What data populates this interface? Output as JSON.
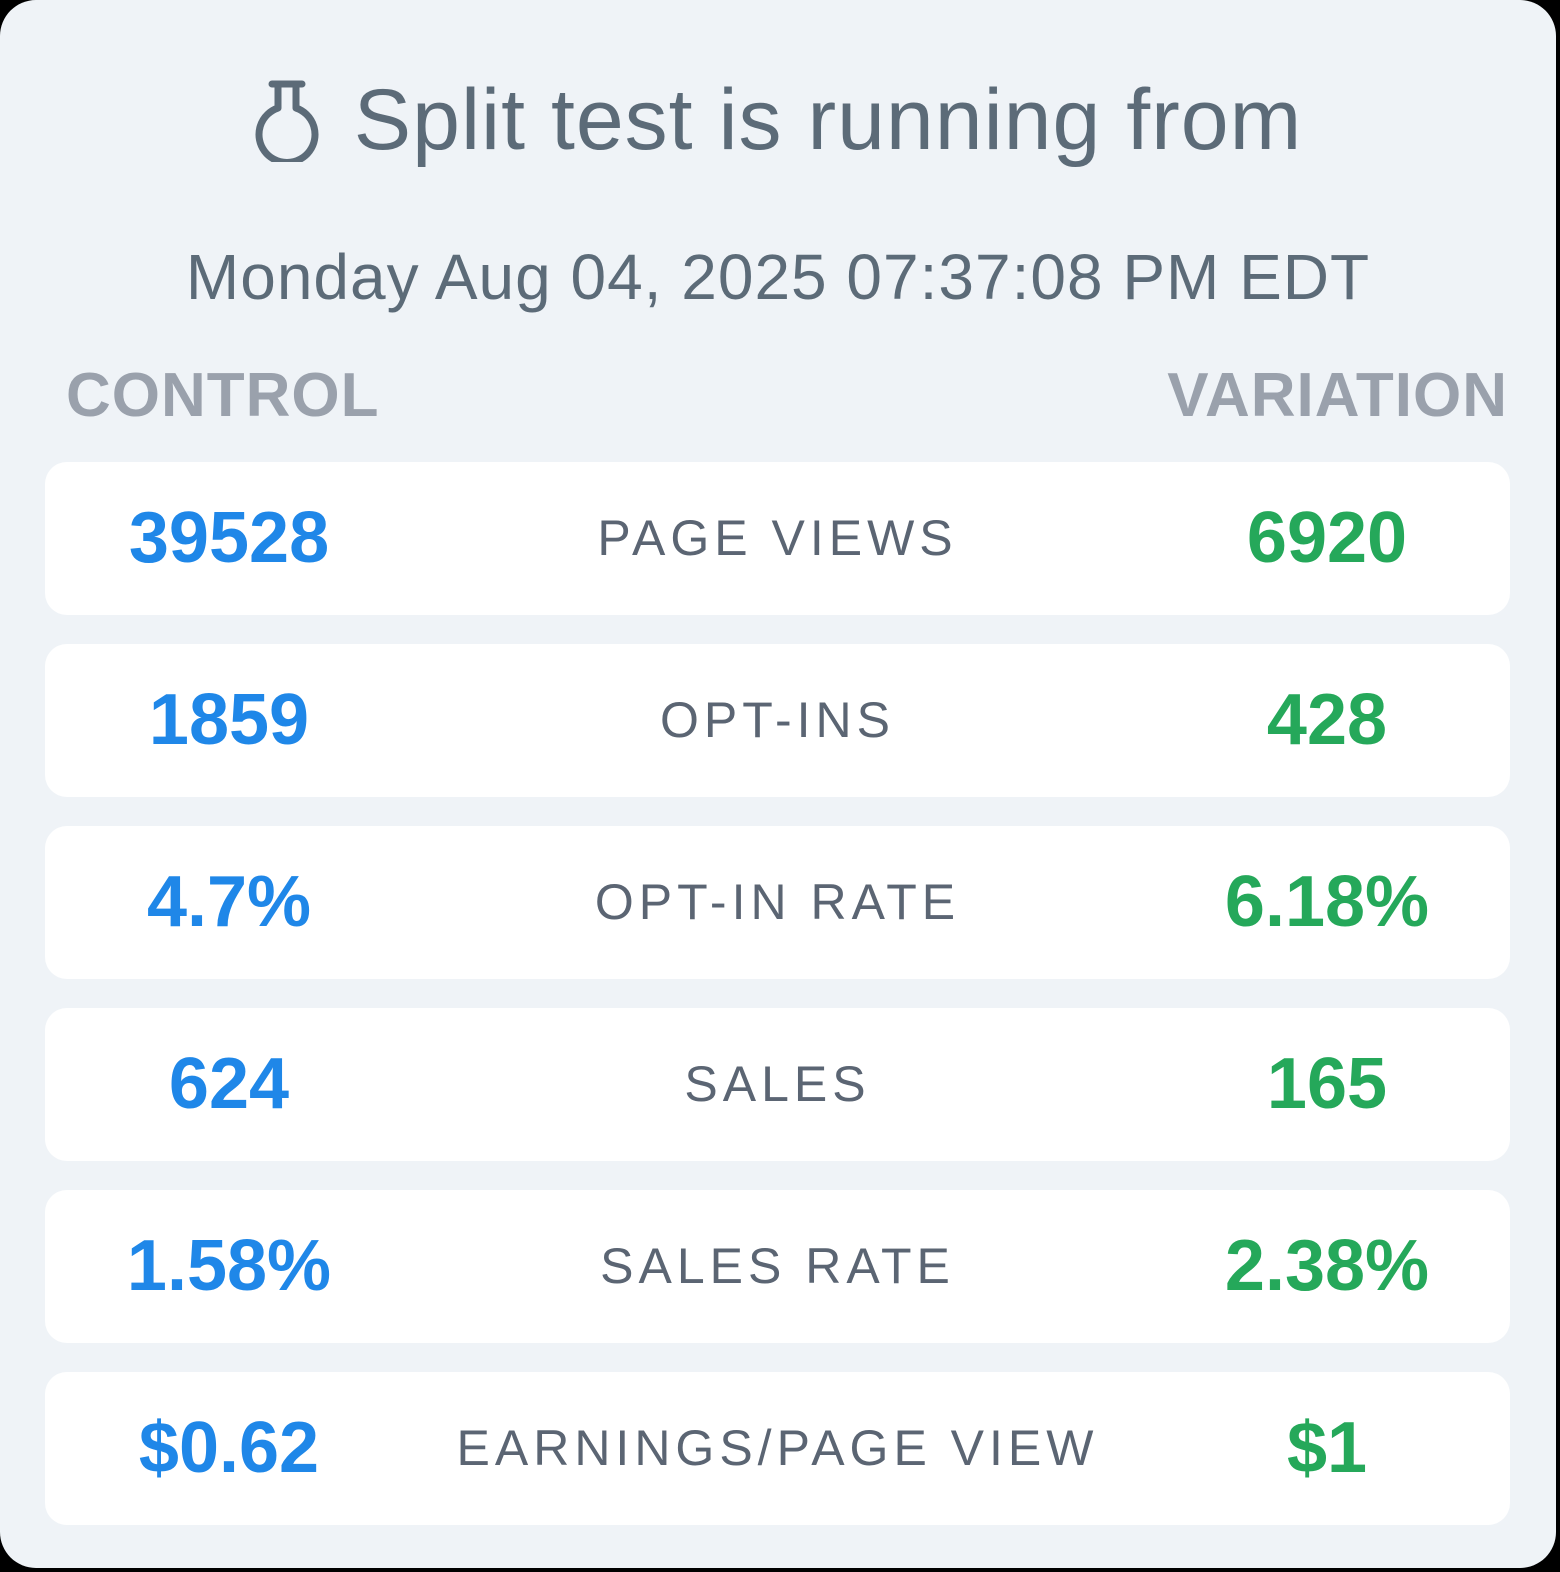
{
  "header": {
    "icon": "flask-icon",
    "title": "Split test is running from",
    "started_at": "Monday Aug 04, 2025 07:37:08 PM EDT"
  },
  "columns": {
    "control": "CONTROL",
    "variation": "VARIATION"
  },
  "colors": {
    "control": "#1f87e8",
    "variation": "#25a85a",
    "background": "#eff3f7"
  },
  "rows": [
    {
      "metric": "PAGE VIEWS",
      "control": "39528",
      "variation": "6920"
    },
    {
      "metric": "OPT-INS",
      "control": "1859",
      "variation": "428"
    },
    {
      "metric": "OPT-IN RATE",
      "control": "4.7%",
      "variation": "6.18%"
    },
    {
      "metric": "SALES",
      "control": "624",
      "variation": "165"
    },
    {
      "metric": "SALES RATE",
      "control": "1.58%",
      "variation": "2.38%"
    },
    {
      "metric": "EARNINGS/PAGE VIEW",
      "control": "$0.62",
      "variation": "$1"
    }
  ]
}
